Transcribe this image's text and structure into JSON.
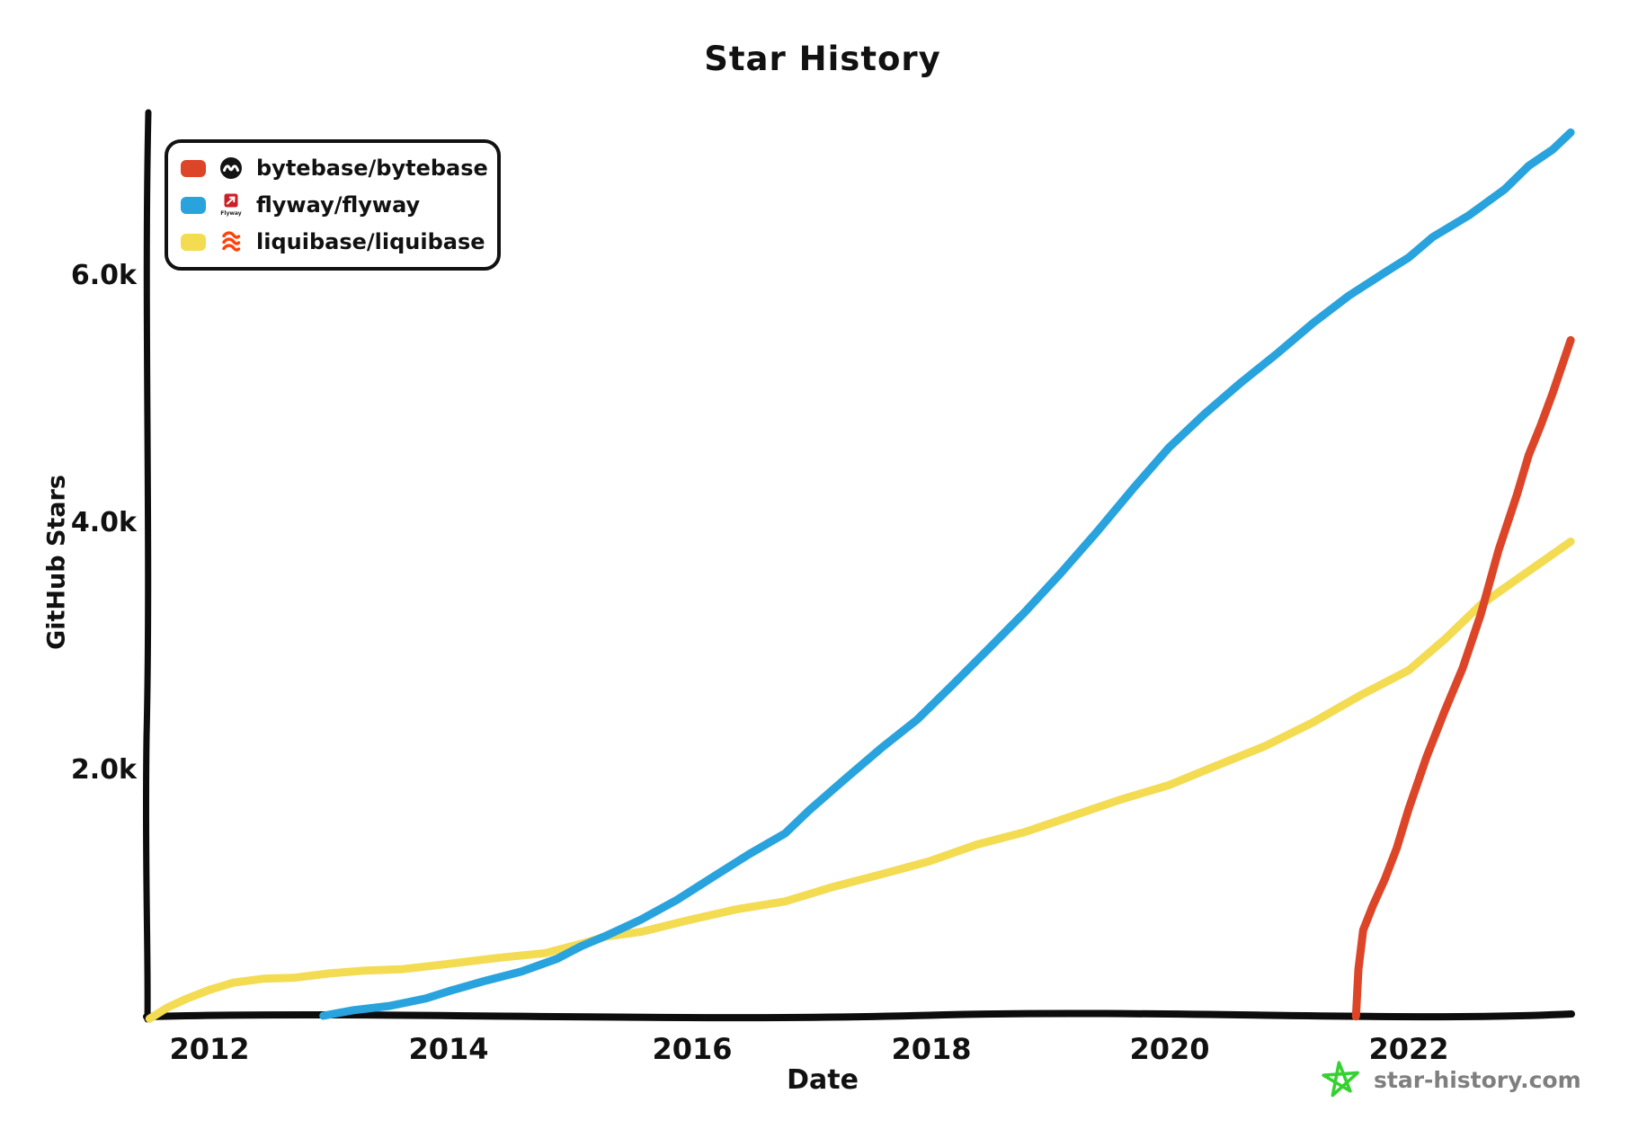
{
  "title": "Star History",
  "legend": {
    "items": [
      {
        "label": "bytebase/bytebase",
        "color": "#dd4528"
      },
      {
        "label": "flyway/flyway",
        "color": "#28a3dd"
      },
      {
        "label": "liquibase/liquibase",
        "color": "#f3db52"
      }
    ]
  },
  "axes": {
    "xlabel": "Date",
    "ylabel": "GitHub Stars"
  },
  "watermark": {
    "text": "star-history.com",
    "star_color": "#35d22f"
  },
  "colors": {
    "axis": "#0d0d0d",
    "tick_text": "#111111",
    "watermark_text": "#7f7f7f"
  },
  "chart_data": {
    "type": "line",
    "title": "Star History",
    "xlabel": "Date",
    "ylabel": "GitHub Stars",
    "x_ticks": [
      "2012",
      "2014",
      "2016",
      "2018",
      "2020",
      "2022"
    ],
    "y_ticks": [
      "2.0k",
      "4.0k",
      "6.0k"
    ],
    "x_range": [
      2011.5,
      2023.4
    ],
    "y_range": [
      0,
      7400
    ],
    "grid": false,
    "legend_position": "top-left",
    "series": [
      {
        "name": "liquibase/liquibase",
        "color": "#f3db52",
        "points_year_stars": [
          [
            2011.5,
            0
          ],
          [
            2011.65,
            90
          ],
          [
            2011.8,
            150
          ],
          [
            2012.0,
            215
          ],
          [
            2012.2,
            275
          ],
          [
            2012.45,
            320
          ],
          [
            2012.7,
            330
          ],
          [
            2013.0,
            350
          ],
          [
            2013.3,
            375
          ],
          [
            2013.6,
            400
          ],
          [
            2014.0,
            430
          ],
          [
            2014.4,
            480
          ],
          [
            2014.8,
            530
          ],
          [
            2015.1,
            590
          ],
          [
            2015.3,
            645
          ],
          [
            2015.6,
            700
          ],
          [
            2016.0,
            790
          ],
          [
            2016.4,
            870
          ],
          [
            2016.8,
            950
          ],
          [
            2017.2,
            1050
          ],
          [
            2017.6,
            1160
          ],
          [
            2018.0,
            1270
          ],
          [
            2018.4,
            1390
          ],
          [
            2018.8,
            1510
          ],
          [
            2019.2,
            1630
          ],
          [
            2019.6,
            1760
          ],
          [
            2020.0,
            1890
          ],
          [
            2020.4,
            2030
          ],
          [
            2020.8,
            2200
          ],
          [
            2021.2,
            2390
          ],
          [
            2021.6,
            2600
          ],
          [
            2022.0,
            2820
          ],
          [
            2022.3,
            3060
          ],
          [
            2022.6,
            3330
          ],
          [
            2022.9,
            3550
          ],
          [
            2023.1,
            3690
          ],
          [
            2023.35,
            3850
          ]
        ]
      },
      {
        "name": "flyway/flyway",
        "color": "#28a3dd",
        "points_year_stars": [
          [
            2012.95,
            10
          ],
          [
            2013.2,
            50
          ],
          [
            2013.5,
            100
          ],
          [
            2013.8,
            160
          ],
          [
            2014.0,
            210
          ],
          [
            2014.3,
            290
          ],
          [
            2014.6,
            380
          ],
          [
            2014.9,
            480
          ],
          [
            2015.1,
            570
          ],
          [
            2015.3,
            650
          ],
          [
            2015.6,
            800
          ],
          [
            2015.9,
            960
          ],
          [
            2016.2,
            1130
          ],
          [
            2016.5,
            1320
          ],
          [
            2016.8,
            1500
          ],
          [
            2017.0,
            1680
          ],
          [
            2017.3,
            1920
          ],
          [
            2017.6,
            2180
          ],
          [
            2017.9,
            2420
          ],
          [
            2018.2,
            2690
          ],
          [
            2018.5,
            2980
          ],
          [
            2018.8,
            3290
          ],
          [
            2019.1,
            3600
          ],
          [
            2019.4,
            3920
          ],
          [
            2019.7,
            4280
          ],
          [
            2020.0,
            4620
          ],
          [
            2020.3,
            4880
          ],
          [
            2020.6,
            5130
          ],
          [
            2020.9,
            5380
          ],
          [
            2021.2,
            5620
          ],
          [
            2021.5,
            5830
          ],
          [
            2021.8,
            6030
          ],
          [
            2022.0,
            6160
          ],
          [
            2022.2,
            6320
          ],
          [
            2022.5,
            6480
          ],
          [
            2022.8,
            6700
          ],
          [
            2023.0,
            6900
          ],
          [
            2023.2,
            7030
          ],
          [
            2023.35,
            7160
          ]
        ]
      },
      {
        "name": "bytebase/bytebase",
        "color": "#dd4528",
        "points_year_stars": [
          [
            2021.56,
            0
          ],
          [
            2021.58,
            380
          ],
          [
            2021.62,
            700
          ],
          [
            2021.7,
            900
          ],
          [
            2021.8,
            1120
          ],
          [
            2021.9,
            1380
          ],
          [
            2022.0,
            1700
          ],
          [
            2022.15,
            2120
          ],
          [
            2022.3,
            2480
          ],
          [
            2022.45,
            2820
          ],
          [
            2022.6,
            3250
          ],
          [
            2022.75,
            3780
          ],
          [
            2022.9,
            4230
          ],
          [
            2023.0,
            4560
          ],
          [
            2023.1,
            4800
          ],
          [
            2023.2,
            5060
          ],
          [
            2023.35,
            5480
          ]
        ]
      }
    ]
  }
}
